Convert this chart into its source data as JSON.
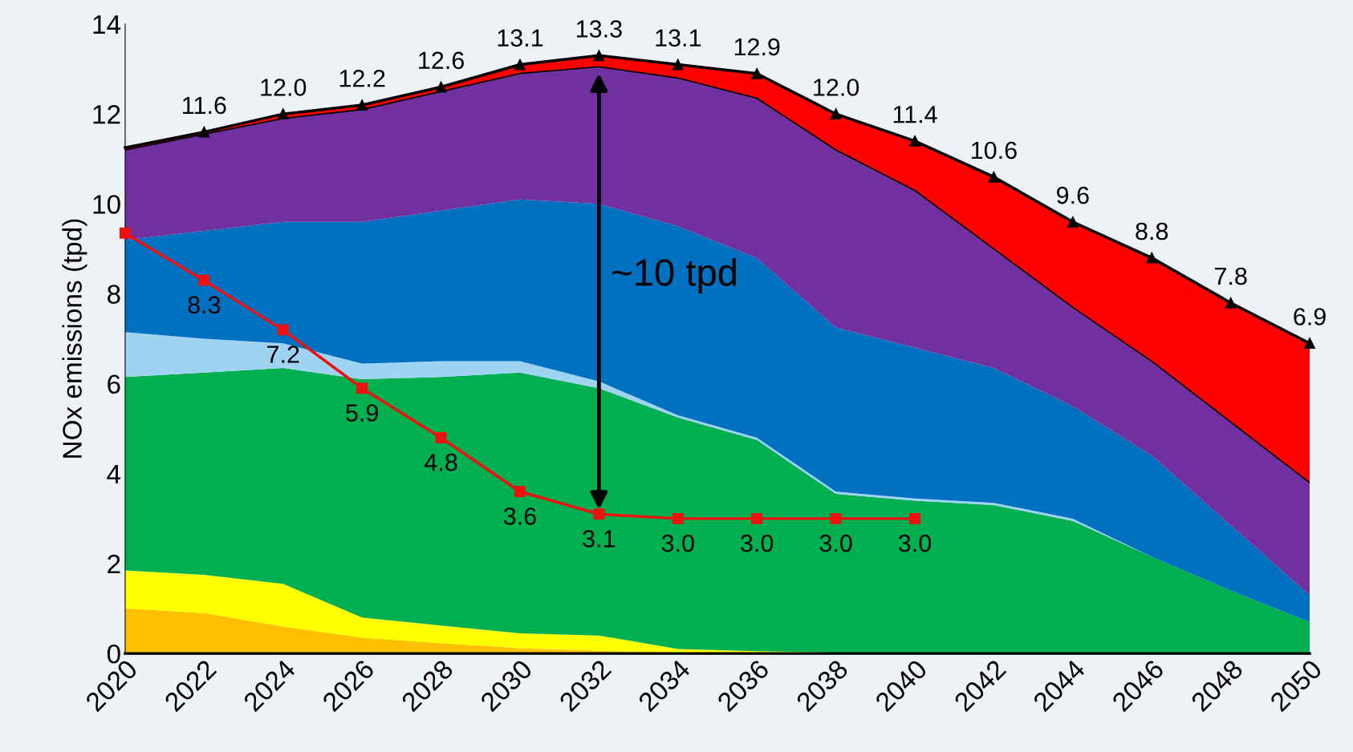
{
  "chart_data": {
    "type": "area",
    "stacked": true,
    "ylabel": "NOx emissions (tpd)",
    "x": [
      2020,
      2022,
      2024,
      2026,
      2028,
      2030,
      2032,
      2034,
      2036,
      2038,
      2040,
      2042,
      2044,
      2046,
      2048,
      2050
    ],
    "series": [
      {
        "color": "#ffc000",
        "values": [
          1.0,
          0.9,
          0.6,
          0.35,
          0.23,
          0.12,
          0.06,
          0.02,
          0,
          0,
          0,
          0,
          0,
          0,
          0,
          0
        ]
      },
      {
        "color": "#ffff00",
        "values": [
          0.85,
          0.85,
          0.95,
          0.45,
          0.39,
          0.33,
          0.34,
          0.08,
          0.05,
          0.02,
          0,
          0,
          0,
          0,
          0,
          0
        ]
      },
      {
        "color": "#00b050",
        "values": [
          4.3,
          4.5,
          4.8,
          5.3,
          5.53,
          5.8,
          5.5,
          5.15,
          4.7,
          3.53,
          3.4,
          3.3,
          2.95,
          2.15,
          1.4,
          0.7
        ]
      },
      {
        "color": "#9fd3f2",
        "values": [
          1.0,
          0.75,
          0.55,
          0.35,
          0.35,
          0.25,
          0.15,
          0.05,
          0.05,
          0.05,
          0.05,
          0.05,
          0.05,
          0,
          0,
          0
        ]
      },
      {
        "color": "#0070c0",
        "values": [
          2.05,
          2.4,
          2.7,
          3.15,
          3.35,
          3.6,
          3.95,
          4.2,
          4.0,
          3.65,
          3.35,
          3.0,
          2.5,
          2.25,
          1.45,
          0.6
        ]
      },
      {
        "color": "#7030a0",
        "values": [
          2.0,
          2.15,
          2.3,
          2.5,
          2.65,
          2.8,
          3.05,
          3.3,
          3.55,
          3.95,
          3.5,
          2.65,
          2.2,
          2.1,
          2.3,
          2.5
        ]
      },
      {
        "color": "#ff0000",
        "marker": "triangle",
        "values": [
          0.05,
          0.05,
          0.1,
          0.1,
          0.1,
          0.2,
          0.25,
          0.3,
          0.55,
          0.8,
          1.1,
          1.6,
          1.9,
          2.3,
          2.65,
          3.1
        ]
      },
      {
        "type": "line",
        "color": "#f01010",
        "marker": "square",
        "values": [
          9.35,
          8.3,
          7.2,
          5.9,
          4.8,
          3.6,
          3.1,
          3.0,
          3.0,
          3.0,
          3.0,
          null,
          null,
          null,
          null,
          null
        ],
        "value_labels": [
          null,
          "8.3",
          "7.2",
          "5.9",
          "4.8",
          "3.6",
          "3.1",
          "3.0",
          "3.0",
          "3.0",
          "3.0",
          null,
          null,
          null,
          null,
          null
        ]
      }
    ],
    "totals": [
      null,
      "11.6",
      "12.0",
      "12.2",
      "12.6",
      "13.1",
      "13.3",
      "13.1",
      "12.9",
      "12.0",
      "11.4",
      "10.6",
      "9.6",
      "8.8",
      "7.8",
      "6.9"
    ],
    "annotations": [
      "~10 tpd"
    ],
    "xlim": [
      2020,
      2050
    ],
    "xticks": [
      2020,
      2022,
      2024,
      2026,
      2028,
      2030,
      2032,
      2034,
      2036,
      2038,
      2040,
      2042,
      2044,
      2046,
      2048,
      2050
    ],
    "ylim": [
      0,
      14
    ],
    "yticks": [
      0,
      2,
      4,
      6,
      8,
      10,
      12,
      14
    ],
    "grid": false,
    "legend": false
  }
}
